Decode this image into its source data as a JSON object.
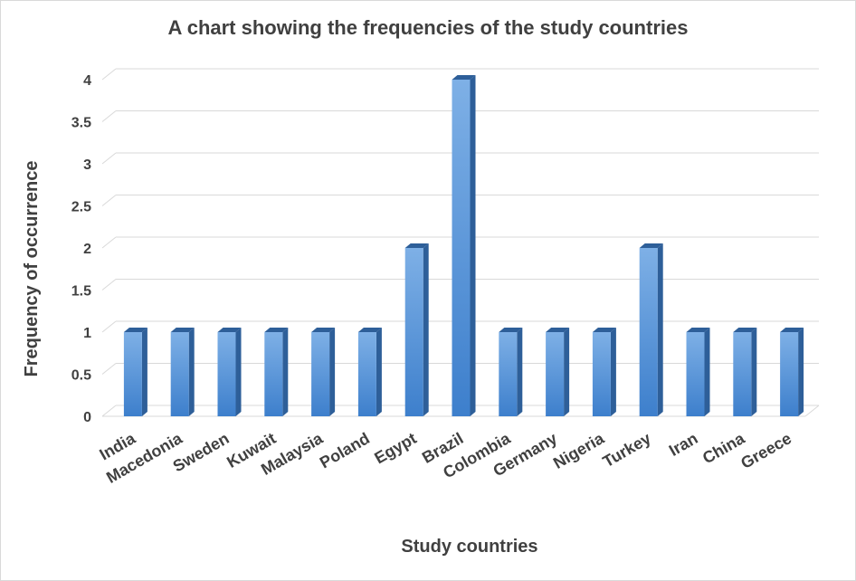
{
  "chart_data": {
    "type": "bar",
    "title": "A chart showing the frequencies of the study countries",
    "xlabel": "Study countries",
    "ylabel": "Frequency of occurrence",
    "categories": [
      "India",
      "Macedonia",
      "Sweden",
      "Kuwait",
      "Malaysia",
      "Poland",
      "Egypt",
      "Brazil",
      "Colombia",
      "Germany",
      "Nigeria",
      "Turkey",
      "Iran",
      "China",
      "Greece"
    ],
    "values": [
      1,
      1,
      1,
      1,
      1,
      1,
      2,
      4,
      1,
      1,
      1,
      2,
      1,
      1,
      1
    ],
    "ylim": [
      0,
      4
    ],
    "yticks": [
      "0",
      "0.5",
      "1",
      "1.5",
      "2",
      "2.5",
      "3",
      "3.5",
      "4"
    ],
    "grid": true,
    "legend": "none",
    "bar_style": "3d-column",
    "colors": {
      "bar_light": "#7eb0e6",
      "bar_dark": "#3d7fcc",
      "bar_side": "#2e5f99",
      "bar_top": "#2e5f99",
      "grid": "#d9d9d9",
      "text": "#404040"
    }
  }
}
